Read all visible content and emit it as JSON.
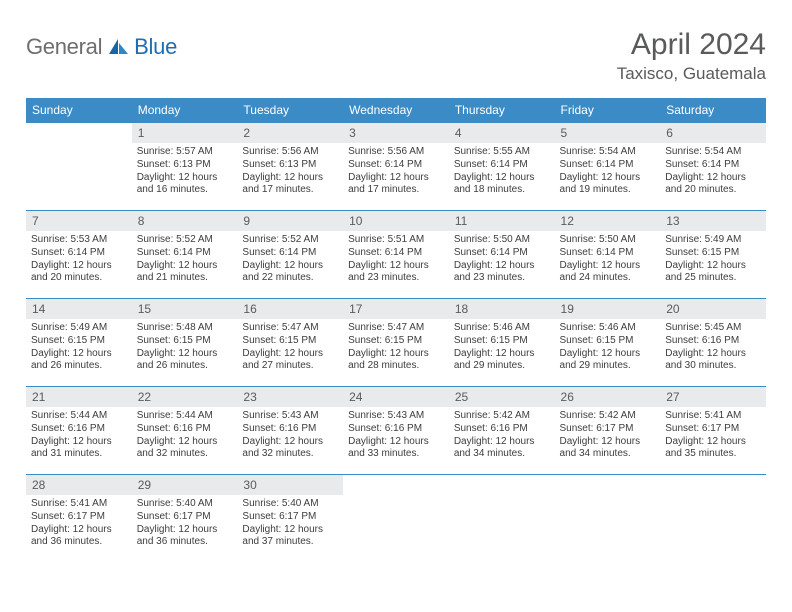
{
  "brand": {
    "general": "General",
    "blue": "Blue"
  },
  "title": "April 2024",
  "location": "Taxisco, Guatemala",
  "colors": {
    "header_bg": "#3b8bc6",
    "header_text": "#ffffff",
    "daynum_bg": "#e9eaeb",
    "daynum_text": "#595b5d",
    "body_text": "#3d3d3d",
    "title_text": "#585a5c",
    "grid_border": "#3b8bc6"
  },
  "daynames": [
    "Sunday",
    "Monday",
    "Tuesday",
    "Wednesday",
    "Thursday",
    "Friday",
    "Saturday"
  ],
  "weeks": [
    [
      null,
      {
        "n": "1",
        "sunrise": "5:57 AM",
        "sunset": "6:13 PM",
        "day": "12 hours and 16 minutes."
      },
      {
        "n": "2",
        "sunrise": "5:56 AM",
        "sunset": "6:13 PM",
        "day": "12 hours and 17 minutes."
      },
      {
        "n": "3",
        "sunrise": "5:56 AM",
        "sunset": "6:14 PM",
        "day": "12 hours and 17 minutes."
      },
      {
        "n": "4",
        "sunrise": "5:55 AM",
        "sunset": "6:14 PM",
        "day": "12 hours and 18 minutes."
      },
      {
        "n": "5",
        "sunrise": "5:54 AM",
        "sunset": "6:14 PM",
        "day": "12 hours and 19 minutes."
      },
      {
        "n": "6",
        "sunrise": "5:54 AM",
        "sunset": "6:14 PM",
        "day": "12 hours and 20 minutes."
      }
    ],
    [
      {
        "n": "7",
        "sunrise": "5:53 AM",
        "sunset": "6:14 PM",
        "day": "12 hours and 20 minutes."
      },
      {
        "n": "8",
        "sunrise": "5:52 AM",
        "sunset": "6:14 PM",
        "day": "12 hours and 21 minutes."
      },
      {
        "n": "9",
        "sunrise": "5:52 AM",
        "sunset": "6:14 PM",
        "day": "12 hours and 22 minutes."
      },
      {
        "n": "10",
        "sunrise": "5:51 AM",
        "sunset": "6:14 PM",
        "day": "12 hours and 23 minutes."
      },
      {
        "n": "11",
        "sunrise": "5:50 AM",
        "sunset": "6:14 PM",
        "day": "12 hours and 23 minutes."
      },
      {
        "n": "12",
        "sunrise": "5:50 AM",
        "sunset": "6:14 PM",
        "day": "12 hours and 24 minutes."
      },
      {
        "n": "13",
        "sunrise": "5:49 AM",
        "sunset": "6:15 PM",
        "day": "12 hours and 25 minutes."
      }
    ],
    [
      {
        "n": "14",
        "sunrise": "5:49 AM",
        "sunset": "6:15 PM",
        "day": "12 hours and 26 minutes."
      },
      {
        "n": "15",
        "sunrise": "5:48 AM",
        "sunset": "6:15 PM",
        "day": "12 hours and 26 minutes."
      },
      {
        "n": "16",
        "sunrise": "5:47 AM",
        "sunset": "6:15 PM",
        "day": "12 hours and 27 minutes."
      },
      {
        "n": "17",
        "sunrise": "5:47 AM",
        "sunset": "6:15 PM",
        "day": "12 hours and 28 minutes."
      },
      {
        "n": "18",
        "sunrise": "5:46 AM",
        "sunset": "6:15 PM",
        "day": "12 hours and 29 minutes."
      },
      {
        "n": "19",
        "sunrise": "5:46 AM",
        "sunset": "6:15 PM",
        "day": "12 hours and 29 minutes."
      },
      {
        "n": "20",
        "sunrise": "5:45 AM",
        "sunset": "6:16 PM",
        "day": "12 hours and 30 minutes."
      }
    ],
    [
      {
        "n": "21",
        "sunrise": "5:44 AM",
        "sunset": "6:16 PM",
        "day": "12 hours and 31 minutes."
      },
      {
        "n": "22",
        "sunrise": "5:44 AM",
        "sunset": "6:16 PM",
        "day": "12 hours and 32 minutes."
      },
      {
        "n": "23",
        "sunrise": "5:43 AM",
        "sunset": "6:16 PM",
        "day": "12 hours and 32 minutes."
      },
      {
        "n": "24",
        "sunrise": "5:43 AM",
        "sunset": "6:16 PM",
        "day": "12 hours and 33 minutes."
      },
      {
        "n": "25",
        "sunrise": "5:42 AM",
        "sunset": "6:16 PM",
        "day": "12 hours and 34 minutes."
      },
      {
        "n": "26",
        "sunrise": "5:42 AM",
        "sunset": "6:17 PM",
        "day": "12 hours and 34 minutes."
      },
      {
        "n": "27",
        "sunrise": "5:41 AM",
        "sunset": "6:17 PM",
        "day": "12 hours and 35 minutes."
      }
    ],
    [
      {
        "n": "28",
        "sunrise": "5:41 AM",
        "sunset": "6:17 PM",
        "day": "12 hours and 36 minutes."
      },
      {
        "n": "29",
        "sunrise": "5:40 AM",
        "sunset": "6:17 PM",
        "day": "12 hours and 36 minutes."
      },
      {
        "n": "30",
        "sunrise": "5:40 AM",
        "sunset": "6:17 PM",
        "day": "12 hours and 37 minutes."
      },
      null,
      null,
      null,
      null
    ]
  ],
  "labels": {
    "sunrise": "Sunrise: ",
    "sunset": "Sunset: ",
    "daylight": "Daylight: "
  }
}
